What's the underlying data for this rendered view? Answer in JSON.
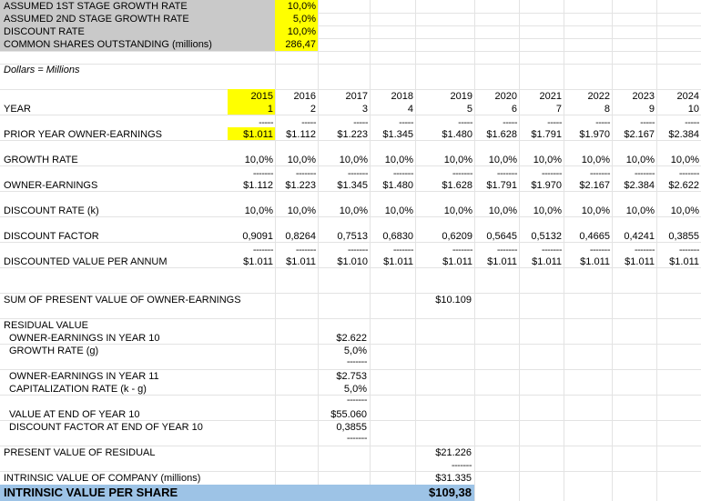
{
  "assumptions": [
    {
      "label": "ASSUMED 1ST STAGE GROWTH RATE",
      "value": "10,0%"
    },
    {
      "label": "ASSUMED 2ND STAGE GROWTH RATE",
      "value": "5,0%"
    },
    {
      "label": "DISCOUNT RATE",
      "value": "10,0%"
    },
    {
      "label": "COMMON SHARES OUTSTANDING (millions)",
      "value": "286,47"
    }
  ],
  "units_note": "Dollars = Millions",
  "labels": {
    "year": "YEAR",
    "prior": "PRIOR YEAR OWNER-EARNINGS",
    "growth": "GROWTH RATE",
    "owner": "OWNER-EARNINGS",
    "discount_rate": "DISCOUNT RATE (k)",
    "discount_factor": "DISCOUNT FACTOR",
    "discounted": "DISCOUNTED VALUE PER ANNUM"
  },
  "years": [
    "2015",
    "2016",
    "2017",
    "2018",
    "2019",
    "2020",
    "2021",
    "2022",
    "2023",
    "2024"
  ],
  "year_nums": [
    "1",
    "2",
    "3",
    "4",
    "5",
    "6",
    "7",
    "8",
    "9",
    "10"
  ],
  "prior": [
    "$1.011",
    "$1.112",
    "$1.223",
    "$1.345",
    "$1.480",
    "$1.628",
    "$1.791",
    "$1.970",
    "$2.167",
    "$2.384"
  ],
  "growth": [
    "10,0%",
    "10,0%",
    "10,0%",
    "10,0%",
    "10,0%",
    "10,0%",
    "10,0%",
    "10,0%",
    "10,0%",
    "10,0%"
  ],
  "owner": [
    "$1.112",
    "$1.223",
    "$1.345",
    "$1.480",
    "$1.628",
    "$1.791",
    "$1.970",
    "$2.167",
    "$2.384",
    "$2.622"
  ],
  "discount_rate": [
    "10,0%",
    "10,0%",
    "10,0%",
    "10,0%",
    "10,0%",
    "10,0%",
    "10,0%",
    "10,0%",
    "10,0%",
    "10,0%"
  ],
  "discount_factor": [
    "0,9091",
    "0,8264",
    "0,7513",
    "0,6830",
    "0,6209",
    "0,5645",
    "0,5132",
    "0,4665",
    "0,4241",
    "0,3855"
  ],
  "discounted": [
    "$1.011",
    "$1.011",
    "$1.010",
    "$1.011",
    "$1.011",
    "$1.011",
    "$1.011",
    "$1.011",
    "$1.011",
    "$1.011"
  ],
  "dash_short": "-----",
  "dash_long": "-------",
  "summary": {
    "sum_pv_label": "SUM OF PRESENT VALUE OF OWNER-EARNINGS",
    "sum_pv_value": "$10.109",
    "residual_label": "RESIDUAL VALUE",
    "oe_y10_label": "OWNER-EARNINGS IN YEAR 10",
    "oe_y10_value": "$2.622",
    "g_label": "GROWTH RATE (g)",
    "g_value": "5,0%",
    "oe_y11_label": "OWNER-EARNINGS IN YEAR 11",
    "oe_y11_value": "$2.753",
    "cap_label": "CAPITALIZATION RATE (k - g)",
    "cap_value": "5,0%",
    "val_y10_label": "VALUE AT END OF YEAR 10",
    "val_y10_value": "$55.060",
    "df_y10_label": "DISCOUNT FACTOR AT END OF YEAR 10",
    "df_y10_value": "0,3855",
    "pv_res_label": "PRESENT VALUE OF RESIDUAL",
    "pv_res_value": "$21.226",
    "iv_company_label": "INTRINSIC VALUE OF COMPANY (millions)",
    "iv_company_value": "$31.335",
    "iv_share_label": "INTRINSIC VALUE PER SHARE",
    "iv_share_value": "$109,38"
  },
  "colors": {
    "assumption_bg": "#c9c9c9",
    "highlight": "#ffff00",
    "result_bg": "#9dc3e6"
  }
}
